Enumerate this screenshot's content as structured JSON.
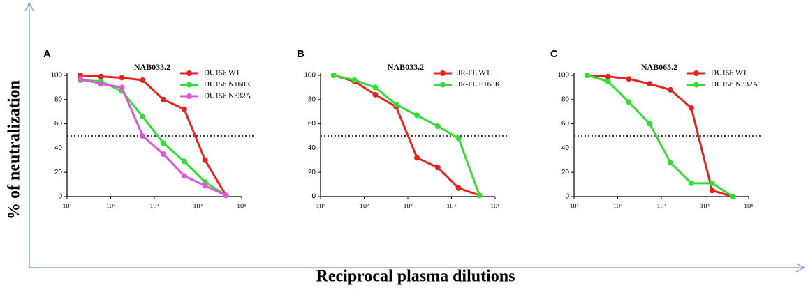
{
  "y_label": "% of neutralization",
  "x_label": "Reciprocal plasma dilutions",
  "chart_data": [
    {
      "type": "line",
      "panel_label": "A",
      "title": "NAB033.2",
      "xscale": "log",
      "legend": "upper right",
      "xlim": [
        10,
        100000
      ],
      "xticks": [
        {
          "value": 10,
          "label": "10¹"
        },
        {
          "value": 100,
          "label": "10²"
        },
        {
          "value": 1000,
          "label": "10³"
        },
        {
          "value": 10000,
          "label": "10⁴"
        },
        {
          "value": 100000,
          "label": "10⁵"
        }
      ],
      "ylim": [
        0,
        100
      ],
      "yticks": [
        0,
        20,
        40,
        60,
        80,
        100
      ],
      "ref_line": 50,
      "x": [
        20,
        60,
        180,
        540,
        1620,
        4860,
        14580,
        43740
      ],
      "series": [
        {
          "name": "DU156 WT",
          "color": "#e8231e",
          "values": [
            100,
            99,
            98,
            96,
            80,
            72,
            30,
            1
          ]
        },
        {
          "name": "DU156 N160K",
          "color": "#33dd33",
          "values": [
            96,
            95,
            87,
            66,
            44,
            29,
            12,
            1
          ]
        },
        {
          "name": "DU156 N332A",
          "color": "#e055e0",
          "values": [
            97,
            93,
            90,
            50,
            35,
            17,
            9,
            1
          ]
        }
      ]
    },
    {
      "type": "line",
      "panel_label": "B",
      "title": "NAB033.2",
      "xscale": "log",
      "legend": "upper right",
      "xlim": [
        10,
        100000
      ],
      "xticks": [
        {
          "value": 10,
          "label": "10¹"
        },
        {
          "value": 100,
          "label": "10²"
        },
        {
          "value": 1000,
          "label": "10³"
        },
        {
          "value": 10000,
          "label": "10⁴"
        },
        {
          "value": 100000,
          "label": "10⁵"
        }
      ],
      "ylim": [
        0,
        100
      ],
      "yticks": [
        0,
        20,
        40,
        60,
        80,
        100
      ],
      "ref_line": 50,
      "x": [
        20,
        60,
        180,
        540,
        1620,
        4860,
        14580,
        43740
      ],
      "series": [
        {
          "name": "JR-FL WT",
          "color": "#e8231e",
          "values": [
            100,
            95,
            84,
            74,
            32,
            24,
            7,
            1
          ]
        },
        {
          "name": "JR-FL E168K",
          "color": "#33dd33",
          "values": [
            100,
            96,
            90,
            76,
            67,
            58,
            48,
            1
          ]
        }
      ]
    },
    {
      "type": "line",
      "panel_label": "C",
      "title": "NAB065.2",
      "xscale": "log",
      "legend": "upper right",
      "xlim": [
        10,
        100000
      ],
      "xticks": [
        {
          "value": 10,
          "label": "10¹"
        },
        {
          "value": 100,
          "label": "10²"
        },
        {
          "value": 1000,
          "label": "10³"
        },
        {
          "value": 10000,
          "label": "10⁴"
        },
        {
          "value": 100000,
          "label": "10⁵"
        }
      ],
      "ylim": [
        0,
        100
      ],
      "yticks": [
        0,
        20,
        40,
        60,
        80,
        100
      ],
      "ref_line": 50,
      "x": [
        20,
        60,
        180,
        540,
        1620,
        4860,
        14580,
        43740
      ],
      "series": [
        {
          "name": "DU156 WT",
          "color": "#e8231e",
          "values": [
            100,
            99,
            97,
            93,
            88,
            73,
            5,
            0
          ]
        },
        {
          "name": "DU156 N332A",
          "color": "#33dd33",
          "values": [
            100,
            95,
            78,
            60,
            28,
            11,
            11,
            0
          ]
        }
      ]
    }
  ]
}
